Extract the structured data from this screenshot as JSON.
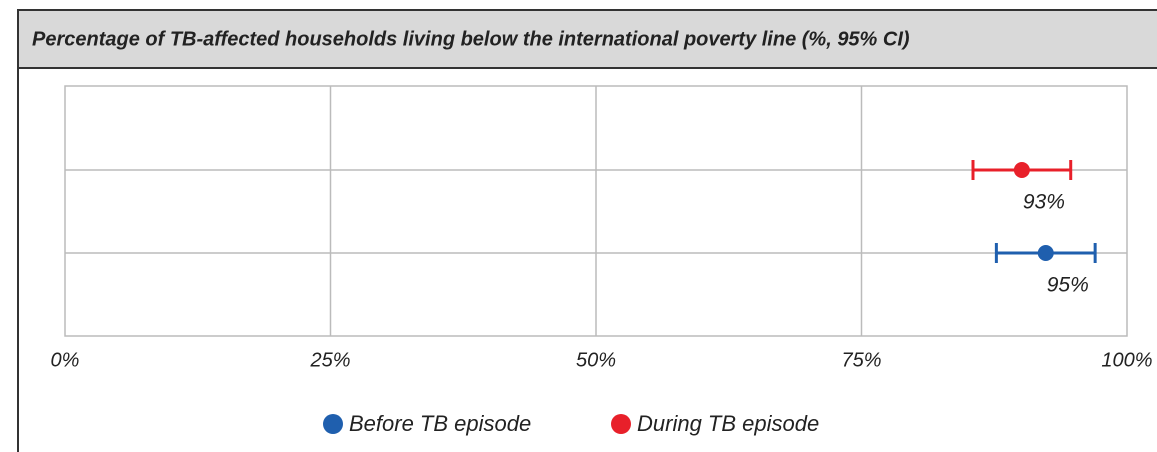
{
  "chart_data": {
    "type": "dot",
    "title": "Percentage of TB-affected households living below the international poverty line (%, 95% CI)",
    "xlim": [
      0,
      100
    ],
    "xticks": [
      {
        "value": 0,
        "label": "0%"
      },
      {
        "value": 25,
        "label": "25%"
      },
      {
        "value": 50,
        "label": "50%"
      },
      {
        "value": 75,
        "label": "75%"
      },
      {
        "value": 100,
        "label": "100%"
      }
    ],
    "grid": true,
    "legend": "bottom",
    "series": [
      {
        "name": "Before TB episode",
        "color": "#1f5fae",
        "values": [
          95
        ],
        "value_labels": [
          "95%"
        ],
        "ci": [
          [
            87.7,
            97.0
          ]
        ]
      },
      {
        "name": "During TB episode",
        "color": "#e8202a",
        "values": [
          93
        ],
        "value_labels": [
          "93%"
        ],
        "ci": [
          [
            85.5,
            94.7
          ]
        ]
      }
    ]
  }
}
